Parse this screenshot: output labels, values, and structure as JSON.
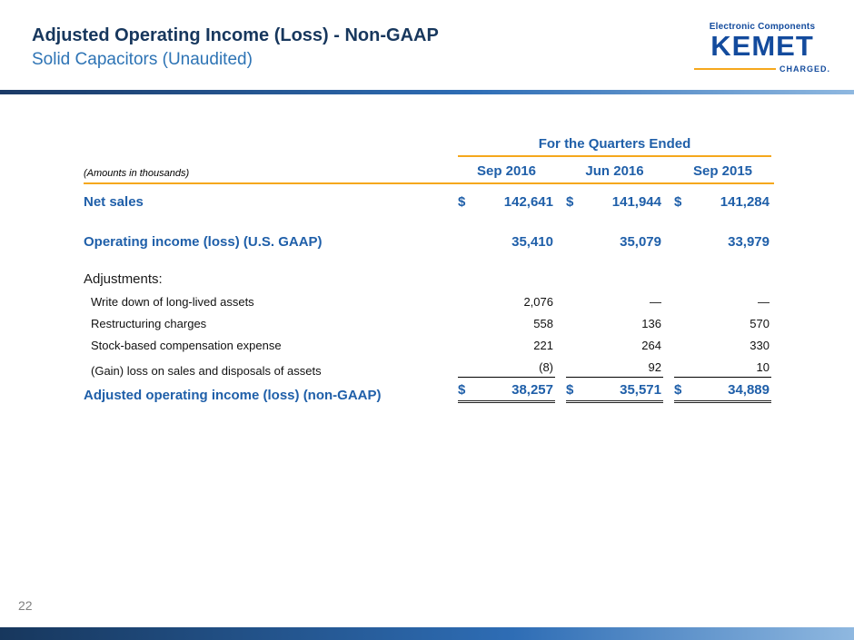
{
  "header": {
    "title": "Adjusted Operating Income (Loss) - Non-GAAP",
    "subtitle": "Solid Capacitors (Unaudited)"
  },
  "logo": {
    "tagline": "Electronic Components",
    "brand": "KEMET",
    "charged": "CHARGED."
  },
  "table": {
    "header_group": "For the Quarters Ended",
    "amounts_note": "(Amounts in thousands)",
    "columns": [
      "Sep 2016",
      "Jun 2016",
      "Sep 2015"
    ],
    "rows": [
      {
        "label": "Net sales",
        "dollar": "$",
        "values": [
          "142,641",
          "141,944",
          "141,284"
        ]
      },
      {
        "label": "Operating income (loss) (U.S. GAAP)",
        "values": [
          "35,410",
          "35,079",
          "33,979"
        ]
      },
      {
        "label": "Adjustments:"
      },
      {
        "label": "Write down of long-lived assets",
        "values": [
          "2,076",
          "—",
          "—"
        ]
      },
      {
        "label": "Restructuring charges",
        "values": [
          "558",
          "136",
          "570"
        ]
      },
      {
        "label": "Stock-based compensation expense",
        "values": [
          "221",
          "264",
          "330"
        ]
      },
      {
        "label": "(Gain) loss on sales and disposals of assets",
        "values": [
          "(8)",
          "92",
          "10"
        ]
      },
      {
        "label": "Adjusted operating income (loss) (non-GAAP)",
        "dollar": "$",
        "values": [
          "38,257",
          "35,571",
          "34,889"
        ]
      }
    ]
  },
  "footer": {
    "page_number": "22"
  },
  "colors": {
    "title_navy": "#17375D",
    "subtitle_blue": "#2E74B5",
    "table_blue": "#1F5FA9",
    "accent_orange": "#F5A81C",
    "logo_blue": "#134B9D"
  }
}
